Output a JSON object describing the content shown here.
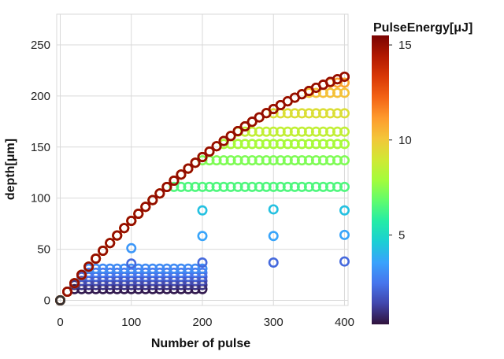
{
  "chart_data": {
    "type": "scatter",
    "xlabel": "Number of pulse",
    "ylabel": "depth[μm]",
    "xlim": [
      -5,
      405
    ],
    "ylim": [
      -5,
      280
    ],
    "xticks": [
      0,
      100,
      200,
      300,
      400
    ],
    "yticks": [
      0,
      50,
      100,
      150,
      200,
      250
    ],
    "grid": true,
    "colorbar": {
      "title": "PulseEnergy[μJ]",
      "range": [
        0.3,
        15.5
      ],
      "ticks": [
        5,
        10,
        15
      ],
      "colormap": [
        "#30123b",
        "#4145ab",
        "#4675ed",
        "#39a2fc",
        "#1bcfd4",
        "#24eca6",
        "#61fc6c",
        "#a4fc3b",
        "#d1e834",
        "#f3c63a",
        "#fe9b2d",
        "#f36315",
        "#d93806",
        "#b11901",
        "#7a0402"
      ]
    },
    "series": [
      {
        "energy": 0.5,
        "saturation": 11,
        "x_max": 200
      },
      {
        "energy": 1.0,
        "saturation": 15,
        "x_max": 200
      },
      {
        "energy": 1.5,
        "saturation": 19,
        "x_max": 200
      },
      {
        "energy": 2.0,
        "saturation": 23,
        "x_max": 200
      },
      {
        "energy": 2.5,
        "saturation": 27,
        "x_max": 200
      },
      {
        "energy": 3.0,
        "saturation": 31,
        "x_max": 200
      },
      {
        "energy": 6.5,
        "saturation": 111,
        "x_max": 400
      },
      {
        "energy": 7.3,
        "saturation": 137,
        "x_max": 400
      },
      {
        "energy": 8.0,
        "saturation": 153,
        "x_max": 400
      },
      {
        "energy": 8.6,
        "saturation": 165,
        "x_max": 400
      },
      {
        "energy": 9.3,
        "saturation": 183,
        "x_max": 400
      },
      {
        "energy": 10.2,
        "saturation": 203,
        "x_max": 400
      },
      {
        "energy": 10.9,
        "saturation": 213,
        "x_max": 400
      },
      {
        "energy": 11.7,
        "saturation": 225,
        "x_max": 400
      },
      {
        "energy": 12.5,
        "saturation": 237,
        "x_max": 400
      },
      {
        "energy": 13.4,
        "saturation": 248,
        "x_max": 400
      },
      {
        "energy": 15.0,
        "saturation": 262,
        "x_max": 400
      }
    ],
    "extra_points": [
      {
        "x": 100,
        "y": 51,
        "energy": 3.3
      },
      {
        "x": 100,
        "y": 36,
        "energy": 2.2
      },
      {
        "x": 200,
        "y": 88,
        "energy": 4.3
      },
      {
        "x": 200,
        "y": 63,
        "energy": 3.6
      },
      {
        "x": 200,
        "y": 37,
        "energy": 2.2
      },
      {
        "x": 300,
        "y": 89,
        "energy": 4.3
      },
      {
        "x": 300,
        "y": 63,
        "energy": 3.6
      },
      {
        "x": 300,
        "y": 37,
        "energy": 2.2
      },
      {
        "x": 400,
        "y": 88,
        "energy": 4.3
      },
      {
        "x": 400,
        "y": 64,
        "energy": 3.6
      },
      {
        "x": 400,
        "y": 38,
        "energy": 2.2
      }
    ]
  }
}
